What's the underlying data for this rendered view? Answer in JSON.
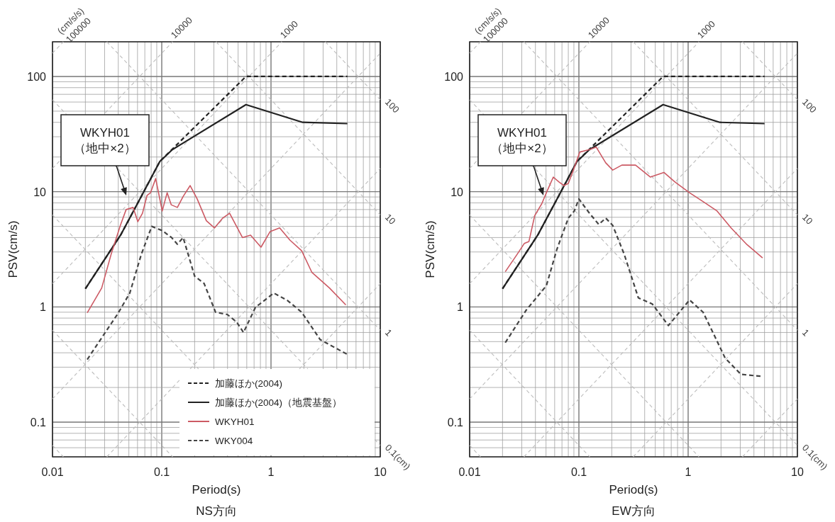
{
  "chart_data": [
    {
      "type": "line",
      "title": "NS方向",
      "xlabel": "Period(s)",
      "ylabel": "PSV(cm/s)",
      "log": "xy",
      "grid": true,
      "legend": "bottom right",
      "xlim": [
        0.01,
        10
      ],
      "ylim": [
        0.05,
        200
      ],
      "xticks": [
        0.01,
        0.1,
        1,
        10
      ],
      "yticks": [
        0.1,
        1,
        10,
        100
      ],
      "series": [
        {
          "color": "#bdbdbd",
          "line_style": "dashed",
          "x": [
            0.01,
            0.01257
          ],
          "values": [
            159.2,
            200
          ]
        },
        {
          "color": "#bdbdbd",
          "line_style": "dashed",
          "x": [
            0.01,
            0.1257
          ],
          "values": [
            15.92,
            200
          ]
        },
        {
          "color": "#bdbdbd",
          "line_style": "dashed",
          "x": [
            0.01,
            1.257
          ],
          "values": [
            1.592,
            200
          ]
        },
        {
          "color": "#bdbdbd",
          "line_style": "dashed",
          "x": [
            0.01,
            10
          ],
          "values": [
            0.1592,
            159.2
          ]
        },
        {
          "color": "#bdbdbd",
          "line_style": "dashed",
          "x": [
            0.03142,
            0.145
          ],
          "values": [
            0.05,
            0.2308
          ]
        },
        {
          "color": "#bdbdbd",
          "line_style": "dashed",
          "x": [
            0.1816,
            10
          ],
          "values": [
            0.289,
            15.92
          ]
        },
        {
          "color": "#bdbdbd",
          "line_style": "dashed",
          "x": [
            1.816,
            10
          ],
          "values": [
            0.289,
            1.592
          ]
        },
        {
          "color": "#bdbdbd",
          "line_style": "dashed",
          "x": [
            3.142,
            10
          ],
          "values": [
            200,
            62.83
          ]
        },
        {
          "color": "#bdbdbd",
          "line_style": "dashed",
          "x": [
            0.3142,
            10
          ],
          "values": [
            200,
            6.283
          ]
        },
        {
          "color": "#bdbdbd",
          "line_style": "dashed",
          "x": [
            0.03142,
            10
          ],
          "values": [
            200,
            0.6283
          ]
        },
        {
          "color": "#bdbdbd",
          "line_style": "dashed",
          "x": [
            0.01,
            2.174
          ],
          "values": [
            62.83,
            0.289
          ]
        },
        {
          "color": "#bdbdbd",
          "line_style": "dashed",
          "x": [
            8.87,
            10
          ],
          "values": [
            0.0708,
            0.06283
          ]
        },
        {
          "color": "#bdbdbd",
          "line_style": "dashed",
          "x": [
            0.01,
            0.2174
          ],
          "values": [
            6.283,
            0.289
          ]
        },
        {
          "color": "#bdbdbd",
          "line_style": "dashed",
          "x": [
            0.01,
            0.1257
          ],
          "values": [
            0.6283,
            0.05
          ]
        },
        {
          "color": "#bdbdbd",
          "line_style": "dashed",
          "x": [
            0.01,
            0.01257
          ],
          "values": [
            0.06283,
            0.05
          ]
        },
        {
          "name": "加藤ほか(2004)",
          "color": "#222222",
          "line_style": "dashed",
          "x": [
            0.02,
            0.042,
            0.065,
            0.096,
            0.59,
            5
          ],
          "values": [
            1.44,
            4.2,
            9.1,
            18.3,
            100,
            100
          ]
        },
        {
          "name": "加藤ほか(2004)（地震基盤）",
          "color": "#222222",
          "line_style": "solid",
          "x": [
            0.02,
            0.042,
            0.065,
            0.096,
            0.125,
            0.59,
            1.95,
            5
          ],
          "values": [
            1.44,
            4.2,
            9.1,
            18.3,
            23.2,
            57,
            40,
            39
          ]
        },
        {
          "name": "WKYH01",
          "color": "#cc5a64",
          "line_style": "solid",
          "x": [
            0.0208,
            0.0282,
            0.0344,
            0.0418,
            0.0472,
            0.0547,
            0.0604,
            0.0666,
            0.0734,
            0.079,
            0.088,
            0.101,
            0.112,
            0.122,
            0.139,
            0.157,
            0.182,
            0.211,
            0.256,
            0.304,
            0.361,
            0.418,
            0.548,
            0.65,
            0.81,
            0.98,
            1.2,
            1.49,
            1.91,
            2.37,
            3.43,
            4.84
          ],
          "values": [
            0.89,
            1.46,
            2.86,
            5.1,
            7.0,
            7.3,
            5.5,
            6.5,
            9.3,
            9.8,
            13.0,
            6.8,
            9.8,
            7.7,
            7.3,
            9.1,
            11.3,
            8.65,
            5.6,
            4.85,
            5.9,
            6.5,
            4.0,
            4.2,
            3.3,
            4.5,
            4.85,
            3.8,
            3.07,
            1.99,
            1.46,
            1.04
          ]
        },
        {
          "name": "WKY004",
          "color": "#444444",
          "line_style": "dashed",
          "x": [
            0.0208,
            0.0398,
            0.051,
            0.065,
            0.081,
            0.101,
            0.123,
            0.139,
            0.157,
            0.2,
            0.244,
            0.311,
            0.398,
            0.485,
            0.56,
            0.72,
            1.06,
            1.41,
            1.91,
            2.82,
            4.93
          ],
          "values": [
            0.35,
            0.88,
            1.32,
            2.86,
            5.0,
            4.6,
            4.0,
            3.5,
            4.0,
            1.85,
            1.6,
            0.9,
            0.86,
            0.74,
            0.6,
            0.99,
            1.32,
            1.14,
            0.9,
            0.52,
            0.39
          ]
        }
      ],
      "annotations": [
        "WKYH01\n（地中×2）",
        {
          "text": "(cm/s/s)\n100000",
          "x": 0.01257,
          "y": 200
        },
        {
          "text": "10000",
          "x": 0.1257,
          "y": 200
        },
        {
          "text": "1000",
          "x": 1.257,
          "y": 200
        },
        {
          "text": "100",
          "x": 10,
          "y": 62.83
        },
        {
          "text": "10",
          "x": 10,
          "y": 6.283
        },
        {
          "text": "1",
          "x": 10,
          "y": 0.6283
        },
        {
          "text": "0.1(cm)",
          "x": 10,
          "y": 0.06283
        }
      ]
    },
    {
      "type": "line",
      "title": "EW方向",
      "xlabel": "Period(s)",
      "ylabel": "PSV(cm/s)",
      "log": "xy",
      "grid": true,
      "xlim": [
        0.01,
        10
      ],
      "ylim": [
        0.05,
        200
      ],
      "xticks": [
        0.01,
        0.1,
        1,
        10
      ],
      "yticks": [
        0.1,
        1,
        10,
        100
      ],
      "series": [
        {
          "color": "#bdbdbd",
          "line_style": "dashed",
          "x": [
            0.01,
            0.01257
          ],
          "values": [
            159.2,
            200
          ]
        },
        {
          "color": "#bdbdbd",
          "line_style": "dashed",
          "x": [
            0.01,
            0.1257
          ],
          "values": [
            15.92,
            200
          ]
        },
        {
          "color": "#bdbdbd",
          "line_style": "dashed",
          "x": [
            0.01,
            1.257
          ],
          "values": [
            1.592,
            200
          ]
        },
        {
          "color": "#bdbdbd",
          "line_style": "dashed",
          "x": [
            0.01,
            10
          ],
          "values": [
            0.1592,
            159.2
          ]
        },
        {
          "color": "#bdbdbd",
          "line_style": "dashed",
          "x": [
            0.03142,
            10
          ],
          "values": [
            0.05,
            15.92
          ]
        },
        {
          "color": "#bdbdbd",
          "line_style": "dashed",
          "x": [
            0.3142,
            10
          ],
          "values": [
            0.05,
            1.592
          ]
        },
        {
          "color": "#bdbdbd",
          "line_style": "dashed",
          "x": [
            3.142,
            10
          ],
          "values": [
            0.05,
            0.1592
          ]
        },
        {
          "color": "#bdbdbd",
          "line_style": "dashed",
          "x": [
            3.142,
            10
          ],
          "values": [
            200,
            62.83
          ]
        },
        {
          "color": "#bdbdbd",
          "line_style": "dashed",
          "x": [
            0.3142,
            10
          ],
          "values": [
            200,
            6.283
          ]
        },
        {
          "color": "#bdbdbd",
          "line_style": "dashed",
          "x": [
            0.03142,
            10
          ],
          "values": [
            200,
            0.6283
          ]
        },
        {
          "color": "#bdbdbd",
          "line_style": "dashed",
          "x": [
            0.01,
            10
          ],
          "values": [
            62.83,
            0.06283
          ]
        },
        {
          "color": "#bdbdbd",
          "line_style": "dashed",
          "x": [
            0.01,
            1.257
          ],
          "values": [
            6.283,
            0.05
          ]
        },
        {
          "color": "#bdbdbd",
          "line_style": "dashed",
          "x": [
            0.01,
            0.1257
          ],
          "values": [
            0.6283,
            0.05
          ]
        },
        {
          "color": "#bdbdbd",
          "line_style": "dashed",
          "x": [
            0.01,
            0.01257
          ],
          "values": [
            0.06283,
            0.05
          ]
        },
        {
          "color": "#222222",
          "line_style": "dashed",
          "x": [
            0.02,
            0.042,
            0.065,
            0.096,
            0.59,
            5
          ],
          "values": [
            1.44,
            4.2,
            9.1,
            18.3,
            100,
            100
          ]
        },
        {
          "color": "#222222",
          "line_style": "solid",
          "x": [
            0.02,
            0.042,
            0.065,
            0.096,
            0.125,
            0.59,
            1.95,
            5
          ],
          "values": [
            1.44,
            4.2,
            9.1,
            18.3,
            23.2,
            57,
            40,
            39
          ]
        },
        {
          "color": "#cc5a64",
          "line_style": "solid",
          "x": [
            0.0212,
            0.0272,
            0.0316,
            0.0349,
            0.0394,
            0.0457,
            0.0504,
            0.0583,
            0.066,
            0.073,
            0.08,
            0.089,
            0.102,
            0.125,
            0.144,
            0.176,
            0.204,
            0.247,
            0.33,
            0.45,
            0.6,
            0.76,
            1.03,
            1.37,
            1.84,
            2.47,
            3.46,
            4.8
          ],
          "values": [
            2.02,
            2.86,
            3.55,
            3.7,
            6.2,
            7.85,
            9.8,
            13.4,
            12.1,
            11.3,
            11.8,
            15.4,
            22.1,
            23.2,
            24.4,
            17.8,
            15.4,
            17.0,
            17.0,
            13.4,
            14.7,
            12.1,
            9.8,
            8.2,
            6.8,
            4.85,
            3.47,
            2.66
          ]
        },
        {
          "color": "#444444",
          "line_style": "dashed",
          "x": [
            0.0212,
            0.033,
            0.0504,
            0.0628,
            0.08,
            0.0907,
            0.1,
            0.125,
            0.152,
            0.176,
            0.204,
            0.26,
            0.35,
            0.47,
            0.66,
            1.03,
            1.37,
            1.73,
            2.18,
            3.04,
            4.67
          ],
          "values": [
            0.49,
            0.94,
            1.53,
            3.15,
            5.9,
            6.8,
            8.65,
            6.5,
            5.2,
            5.9,
            5.1,
            2.86,
            1.2,
            1.06,
            0.69,
            1.15,
            0.9,
            0.57,
            0.36,
            0.26,
            0.25
          ]
        }
      ],
      "annotations": [
        "WKYH01\n（地中×2）",
        {
          "text": "(cm/s/s)\n100000",
          "x": 0.01257,
          "y": 200
        },
        {
          "text": "10000",
          "x": 0.1257,
          "y": 200
        },
        {
          "text": "1000",
          "x": 1.257,
          "y": 200
        },
        {
          "text": "100",
          "x": 10,
          "y": 62.83
        },
        {
          "text": "10",
          "x": 10,
          "y": 6.283
        },
        {
          "text": "1",
          "x": 10,
          "y": 0.6283
        },
        {
          "text": "0.1(cm)",
          "x": 10,
          "y": 0.06283
        }
      ]
    }
  ]
}
